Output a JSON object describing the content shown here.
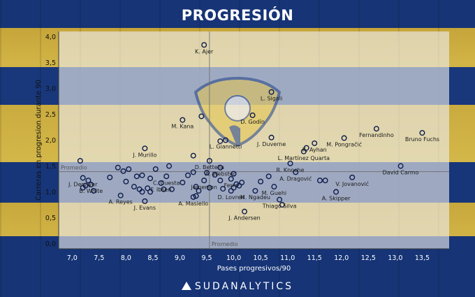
{
  "brand": "SUDANALYTICS",
  "chart_data": {
    "type": "scatter",
    "title": "PROGRESIÓN",
    "xlabel": "Pases progresivos/90",
    "ylabel": "Carreras en progresion durante 90",
    "xlim": [
      6.75,
      14.0
    ],
    "ylim": [
      -0.1,
      4.1
    ],
    "x_ticks": [
      "7,0",
      "7,5",
      "8,0",
      "8,5",
      "9,0",
      "9,5",
      "10,0",
      "10,5",
      "11,0",
      "11,5",
      "12,0",
      "12,5",
      "13,0",
      "13,5"
    ],
    "y_ticks": [
      "0,0",
      "0,5",
      "1,0",
      "1,5",
      "2,0",
      "2,5",
      "3,0",
      "3,5",
      "4,0"
    ],
    "x_tick_values": [
      7.0,
      7.5,
      8.0,
      8.5,
      9.0,
      9.5,
      10.0,
      10.5,
      11.0,
      11.5,
      12.0,
      12.5,
      13.0,
      13.5
    ],
    "y_tick_values": [
      0.0,
      0.5,
      1.0,
      1.5,
      2.0,
      2.5,
      3.0,
      3.5,
      4.0
    ],
    "average_x": 9.55,
    "average_y": 1.39,
    "average_label": "Promedio",
    "grid": false,
    "colors": {
      "marker_stroke": "#0d1b4b",
      "line": "#5a5a5a",
      "text": "#1b1b1b",
      "panel": "#e8e8e8",
      "title": "#ffffff"
    },
    "points": [
      {
        "x": 9.45,
        "y": 3.84,
        "label": "K. Ajer"
      },
      {
        "x": 10.7,
        "y": 2.93,
        "label": "L. Sigali"
      },
      {
        "x": 10.35,
        "y": 2.48,
        "label": "D. Godín"
      },
      {
        "x": 9.4,
        "y": 2.46,
        "label": ""
      },
      {
        "x": 9.05,
        "y": 2.39,
        "label": "M. Kana"
      },
      {
        "x": 12.65,
        "y": 2.22,
        "label": "Fernandinho"
      },
      {
        "x": 13.5,
        "y": 2.14,
        "label": "Bruno Fuchs"
      },
      {
        "x": 12.05,
        "y": 2.04,
        "label": "M. Pongračić"
      },
      {
        "x": 10.7,
        "y": 2.05,
        "label": "J. Duverne"
      },
      {
        "x": 11.5,
        "y": 1.94,
        "label": "K. Ayhan"
      },
      {
        "x": 11.3,
        "y": 1.78,
        "label": "L. Martínez Quarta"
      },
      {
        "x": 11.35,
        "y": 1.85,
        "label": ""
      },
      {
        "x": 9.85,
        "y": 2.0,
        "label": "L. Giannetti"
      },
      {
        "x": 9.75,
        "y": 1.98,
        "label": ""
      },
      {
        "x": 8.35,
        "y": 1.84,
        "label": "J. Murillo"
      },
      {
        "x": 9.25,
        "y": 1.7,
        "label": ""
      },
      {
        "x": 9.55,
        "y": 1.6,
        "label": "D. Bettella"
      },
      {
        "x": 9.75,
        "y": 1.47,
        "label": "A. Webster"
      },
      {
        "x": 11.05,
        "y": 1.55,
        "label": "R. Knoche"
      },
      {
        "x": 13.1,
        "y": 1.5,
        "label": "David Carmo"
      },
      {
        "x": 7.15,
        "y": 1.6,
        "label": ""
      },
      {
        "x": 7.2,
        "y": 1.27,
        "label": "J. Denayer"
      },
      {
        "x": 7.3,
        "y": 1.22,
        "label": ""
      },
      {
        "x": 7.25,
        "y": 1.12,
        "label": ""
      },
      {
        "x": 7.2,
        "y": 1.08,
        "label": ""
      },
      {
        "x": 7.35,
        "y": 1.14,
        "label": "B. White"
      },
      {
        "x": 7.4,
        "y": 1.02,
        "label": ""
      },
      {
        "x": 7.85,
        "y": 1.47,
        "label": ""
      },
      {
        "x": 7.95,
        "y": 1.4,
        "label": ""
      },
      {
        "x": 8.05,
        "y": 1.44,
        "label": ""
      },
      {
        "x": 7.7,
        "y": 1.28,
        "label": ""
      },
      {
        "x": 8.0,
        "y": 1.2,
        "label": ""
      },
      {
        "x": 8.15,
        "y": 1.1,
        "label": ""
      },
      {
        "x": 8.2,
        "y": 1.3,
        "label": ""
      },
      {
        "x": 8.3,
        "y": 1.32,
        "label": ""
      },
      {
        "x": 8.45,
        "y": 1.26,
        "label": ""
      },
      {
        "x": 8.55,
        "y": 1.44,
        "label": ""
      },
      {
        "x": 8.25,
        "y": 1.05,
        "label": ""
      },
      {
        "x": 8.3,
        "y": 1.0,
        "label": ""
      },
      {
        "x": 8.4,
        "y": 1.07,
        "label": ""
      },
      {
        "x": 8.65,
        "y": 1.17,
        "label": "F. Ibsen"
      },
      {
        "x": 8.7,
        "y": 1.05,
        "label": ""
      },
      {
        "x": 8.45,
        "y": 1.0,
        "label": ""
      },
      {
        "x": 7.9,
        "y": 0.93,
        "label": "A. Reyes"
      },
      {
        "x": 8.35,
        "y": 0.82,
        "label": "J. Evans"
      },
      {
        "x": 8.75,
        "y": 1.3,
        "label": "C. Cuesta"
      },
      {
        "x": 8.85,
        "y": 1.05,
        "label": ""
      },
      {
        "x": 8.8,
        "y": 1.5,
        "label": ""
      },
      {
        "x": 9.05,
        "y": 1.18,
        "label": ""
      },
      {
        "x": 9.15,
        "y": 1.32,
        "label": ""
      },
      {
        "x": 9.25,
        "y": 1.38,
        "label": ""
      },
      {
        "x": 9.3,
        "y": 1.1,
        "label": ""
      },
      {
        "x": 9.35,
        "y": 1.02,
        "label": ""
      },
      {
        "x": 9.3,
        "y": 0.92,
        "label": ""
      },
      {
        "x": 9.25,
        "y": 0.9,
        "label": "A. Masiello"
      },
      {
        "x": 9.45,
        "y": 1.22,
        "label": "Jemerson"
      },
      {
        "x": 9.5,
        "y": 1.37,
        "label": ""
      },
      {
        "x": 9.55,
        "y": 1.08,
        "label": ""
      },
      {
        "x": 9.65,
        "y": 1.33,
        "label": ""
      },
      {
        "x": 9.75,
        "y": 1.22,
        "label": ""
      },
      {
        "x": 9.8,
        "y": 1.06,
        "label": ""
      },
      {
        "x": 9.95,
        "y": 1.25,
        "label": "Ferro"
      },
      {
        "x": 10.0,
        "y": 1.35,
        "label": ""
      },
      {
        "x": 10.05,
        "y": 1.15,
        "label": ""
      },
      {
        "x": 10.1,
        "y": 1.12,
        "label": ""
      },
      {
        "x": 10.0,
        "y": 1.08,
        "label": ""
      },
      {
        "x": 9.95,
        "y": 1.02,
        "label": "D. Lovren"
      },
      {
        "x": 10.15,
        "y": 1.18,
        "label": ""
      },
      {
        "x": 10.5,
        "y": 1.2,
        "label": ""
      },
      {
        "x": 10.4,
        "y": 1.02,
        "label": "M. Ngadeu"
      },
      {
        "x": 10.65,
        "y": 1.3,
        "label": ""
      },
      {
        "x": 10.75,
        "y": 1.1,
        "label": "M. Guehi"
      },
      {
        "x": 10.85,
        "y": 0.85,
        "label": "Thiago Silva"
      },
      {
        "x": 10.9,
        "y": 0.75,
        "label": ""
      },
      {
        "x": 10.2,
        "y": 0.62,
        "label": "J. Andersen"
      },
      {
        "x": 11.15,
        "y": 1.38,
        "label": "A. Dragović"
      },
      {
        "x": 11.6,
        "y": 1.22,
        "label": ""
      },
      {
        "x": 11.7,
        "y": 1.22,
        "label": ""
      },
      {
        "x": 12.2,
        "y": 1.28,
        "label": "V. Jovanović"
      },
      {
        "x": 11.9,
        "y": 1.0,
        "label": "A. Skipper"
      }
    ]
  }
}
